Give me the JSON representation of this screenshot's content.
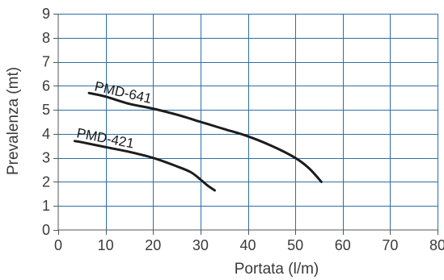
{
  "chart_data": {
    "type": "line",
    "title": "",
    "xlabel": "Portata (l/m)",
    "ylabel": "Prevalenza (mt)",
    "xlim": [
      0,
      80
    ],
    "ylim": [
      0,
      9
    ],
    "x_ticks": [
      0,
      10,
      20,
      30,
      40,
      50,
      60,
      70,
      80
    ],
    "y_ticks": [
      0,
      1,
      2,
      3,
      4,
      5,
      6,
      7,
      8,
      9
    ],
    "grid": true,
    "legend": "none",
    "grid_color": "#2f6fa3",
    "line_color": "#1c1c1c",
    "series": [
      {
        "name": "PMD-641",
        "x": [
          6.5,
          10,
          15,
          20,
          25,
          30,
          35,
          40,
          45,
          50,
          53,
          55.5
        ],
        "y": [
          5.7,
          5.55,
          5.25,
          5.05,
          4.8,
          4.5,
          4.2,
          3.9,
          3.5,
          3.0,
          2.55,
          2.0
        ]
      },
      {
        "name": "PMD-421",
        "x": [
          3.5,
          5,
          10,
          15,
          20,
          25,
          28,
          30,
          31.5,
          33
        ],
        "y": [
          3.7,
          3.65,
          3.45,
          3.25,
          3.0,
          2.65,
          2.4,
          2.1,
          1.85,
          1.65
        ]
      }
    ]
  }
}
